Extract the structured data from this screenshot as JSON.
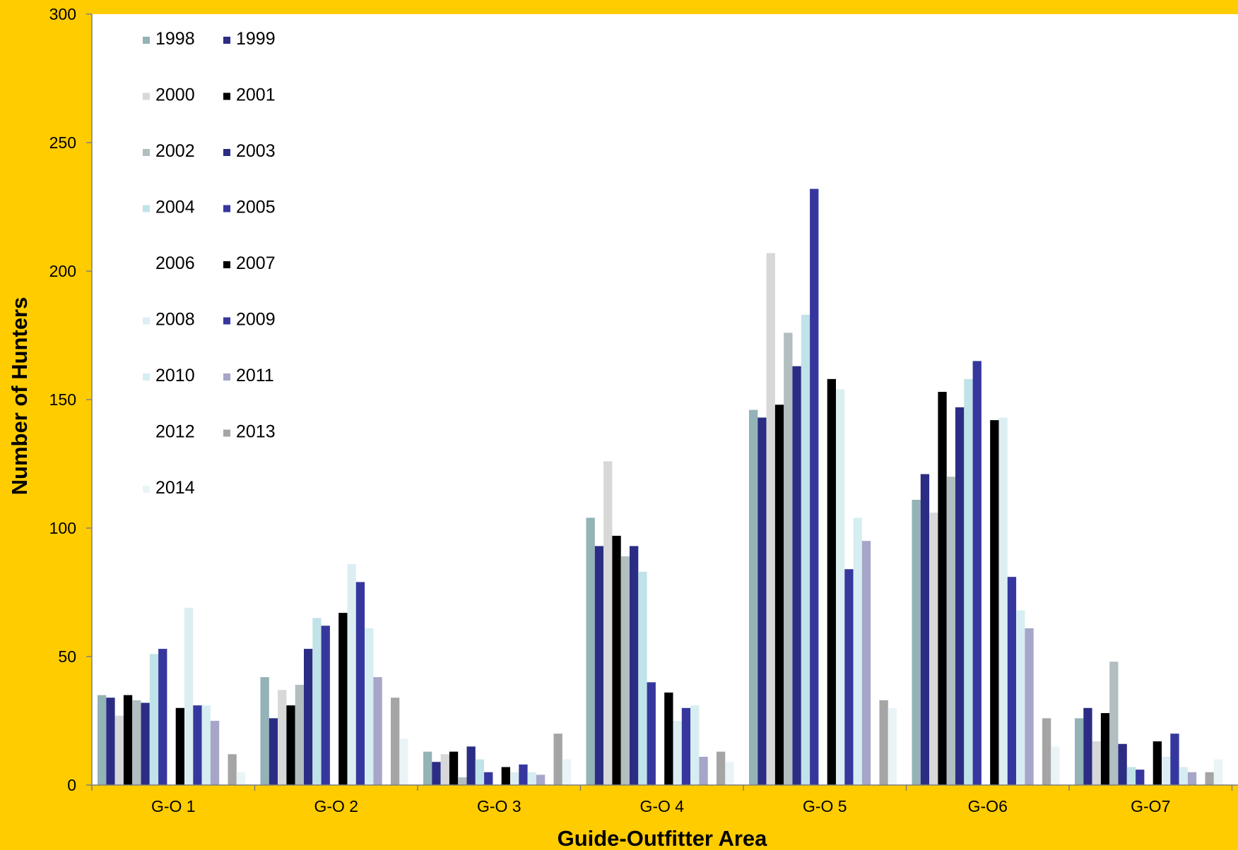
{
  "chart_data": {
    "type": "bar",
    "xlabel": "Guide-Outfitter Area",
    "ylabel": "Number of Hunters",
    "ylim": [
      0,
      300
    ],
    "yticks": [
      0,
      50,
      100,
      150,
      200,
      250,
      300
    ],
    "grid": false,
    "legend_position": "top-left",
    "categories": [
      "G-O 1",
      "G-O 2",
      "G-O 3",
      "G-O 4",
      "G-O 5",
      "G-O6",
      "G-O7"
    ],
    "series": [
      {
        "name": "1998",
        "color": "#93B3B6",
        "values": [
          35,
          42,
          13,
          104,
          146,
          111,
          26
        ]
      },
      {
        "name": "1999",
        "color": "#2B2D84",
        "values": [
          34,
          26,
          9,
          93,
          143,
          121,
          30
        ]
      },
      {
        "name": "2000",
        "color": "#D8D8D8",
        "values": [
          27,
          37,
          12,
          126,
          207,
          106,
          17
        ]
      },
      {
        "name": "2001",
        "color": "#000000",
        "values": [
          35,
          31,
          13,
          97,
          148,
          153,
          28
        ]
      },
      {
        "name": "2002",
        "color": "#B2BEC0",
        "values": [
          33,
          39,
          3,
          89,
          176,
          120,
          48
        ]
      },
      {
        "name": "2003",
        "color": "#2B2D84",
        "values": [
          32,
          53,
          15,
          93,
          163,
          147,
          16
        ]
      },
      {
        "name": "2004",
        "color": "#BFE3E8",
        "values": [
          51,
          65,
          10,
          83,
          183,
          158,
          7
        ]
      },
      {
        "name": "2005",
        "color": "#36379E",
        "values": [
          53,
          62,
          5,
          40,
          232,
          165,
          6
        ]
      },
      {
        "name": "2006",
        "color": "#FFFFFF",
        "values": [
          0,
          0,
          0,
          0,
          0,
          0,
          0
        ]
      },
      {
        "name": "2007",
        "color": "#000000",
        "values": [
          30,
          67,
          7,
          36,
          158,
          142,
          17
        ]
      },
      {
        "name": "2008",
        "color": "#DCEEF1",
        "values": [
          69,
          86,
          5,
          25,
          154,
          143,
          11
        ]
      },
      {
        "name": "2009",
        "color": "#36379E",
        "values": [
          31,
          79,
          8,
          30,
          84,
          81,
          20
        ]
      },
      {
        "name": "2010",
        "color": "#D6EEF1",
        "values": [
          31,
          61,
          5,
          31,
          104,
          68,
          7
        ]
      },
      {
        "name": "2011",
        "color": "#A6A6C9",
        "values": [
          25,
          42,
          4,
          11,
          95,
          61,
          5
        ]
      },
      {
        "name": "2012",
        "color": "#FFFFFF",
        "values": [
          0,
          0,
          0,
          0,
          0,
          0,
          0
        ]
      },
      {
        "name": "2013",
        "color": "#A5A5A5",
        "values": [
          12,
          34,
          20,
          13,
          33,
          26,
          5
        ]
      },
      {
        "name": "2014",
        "color": "#EAF4F7",
        "values": [
          5,
          18,
          10,
          9,
          30,
          15,
          10
        ]
      }
    ]
  }
}
